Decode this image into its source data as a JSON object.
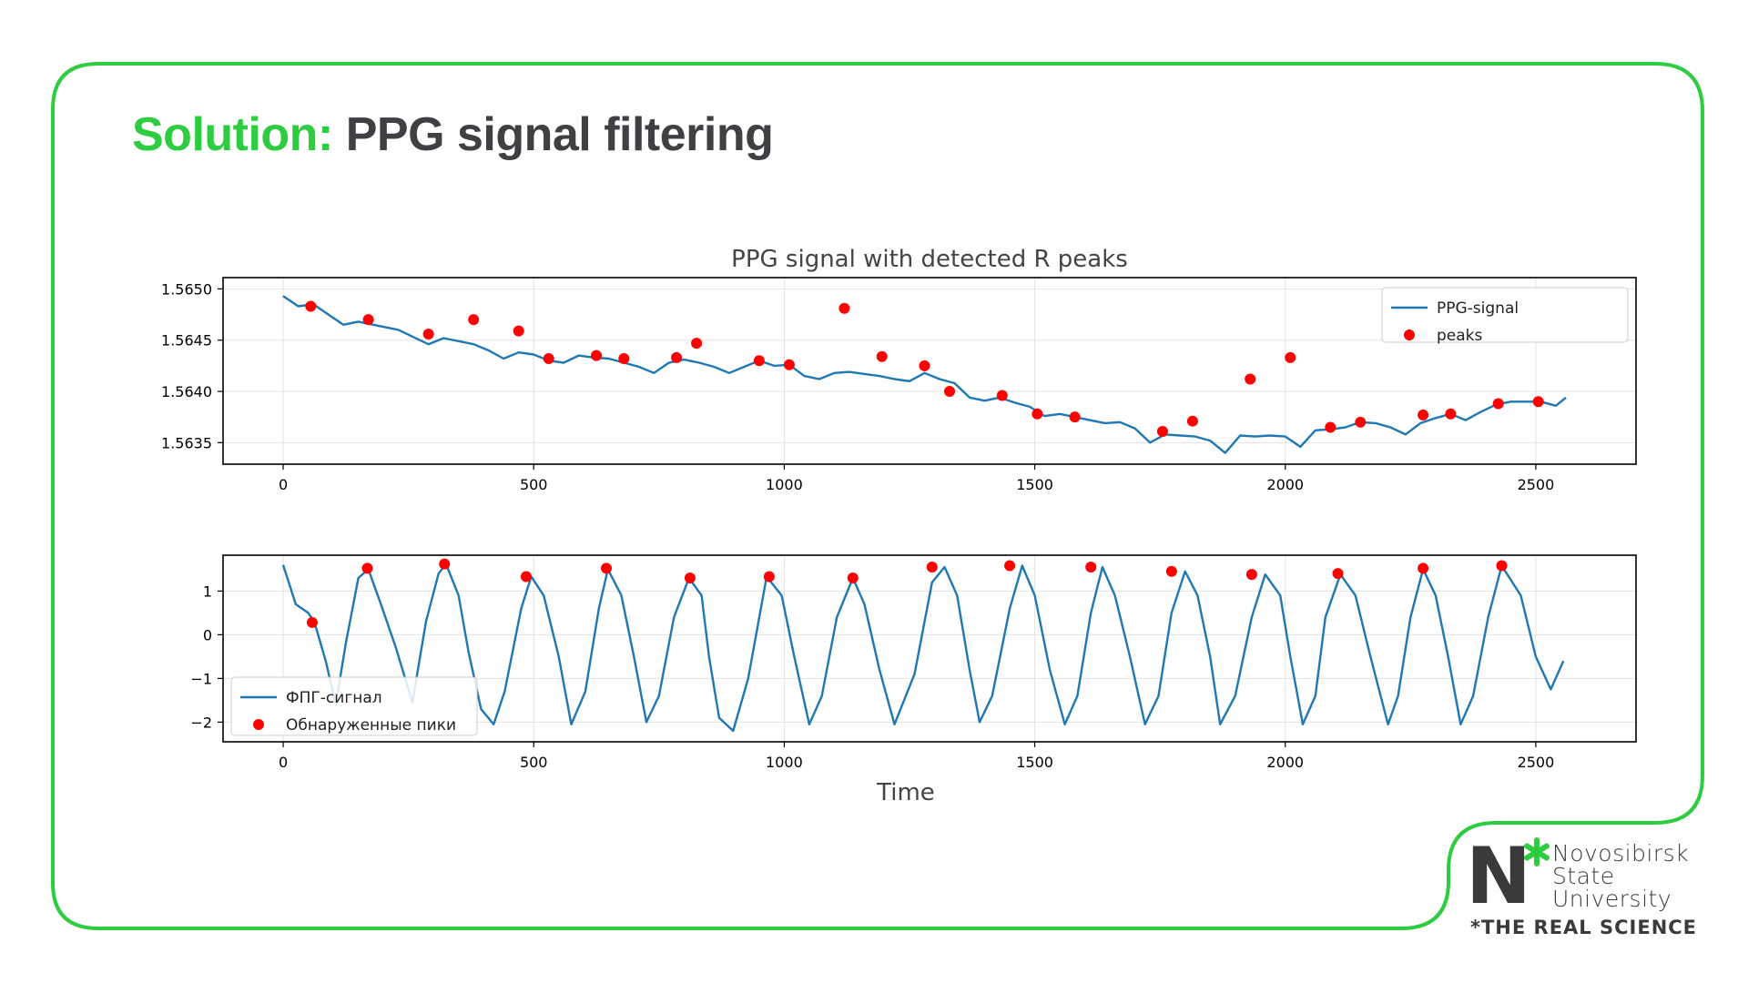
{
  "slide": {
    "title_accent": "Solution:",
    "title_main": "PPG signal filtering"
  },
  "colors": {
    "brand_green": "#2ecc40",
    "line": "#1f77b4",
    "peaks": "#ff0000"
  },
  "icons": {
    "logo": "nsu-logo",
    "star": "asterisk-icon"
  },
  "logo": {
    "letter": "N",
    "name_lines": [
      "Novosibirsk",
      "State",
      "University"
    ],
    "tagline": "*THE REAL SCIENCE"
  },
  "chart_data": [
    {
      "type": "line",
      "title": "PPG signal with detected R peaks",
      "xlabel": "",
      "ylabel": "",
      "xlim": [
        -120,
        2700
      ],
      "ylim": [
        1.56329,
        1.56511
      ],
      "xticks": [
        0,
        500,
        1000,
        1500,
        2000,
        2500
      ],
      "xtick_labels": [
        "0",
        "500",
        "1000",
        "1500",
        "2000",
        "2500"
      ],
      "yticks": [
        1.5635,
        1.564,
        1.5645,
        1.565
      ],
      "ytick_labels": [
        "1.5635",
        "1.5640",
        "1.5645",
        "1.5650"
      ],
      "grid": true,
      "legend_position": "top-right",
      "series": [
        {
          "name": "PPG-signal",
          "style": "line",
          "x": [
            0,
            30,
            60,
            90,
            120,
            150,
            170,
            200,
            230,
            260,
            290,
            320,
            350,
            380,
            410,
            440,
            470,
            500,
            530,
            560,
            590,
            620,
            650,
            680,
            710,
            740,
            770,
            800,
            830,
            860,
            890,
            920,
            950,
            980,
            1010,
            1040,
            1070,
            1100,
            1130,
            1160,
            1190,
            1220,
            1250,
            1280,
            1310,
            1340,
            1370,
            1400,
            1430,
            1460,
            1490,
            1520,
            1550,
            1580,
            1610,
            1640,
            1670,
            1700,
            1730,
            1760,
            1790,
            1820,
            1850,
            1880,
            1910,
            1940,
            1970,
            2000,
            2030,
            2060,
            2090,
            2120,
            2150,
            2180,
            2210,
            2240,
            2270,
            2300,
            2330,
            2360,
            2390,
            2420,
            2450,
            2480,
            2510,
            2540,
            2560
          ],
          "values": [
            1.56493,
            1.56483,
            1.56485,
            1.56475,
            1.56465,
            1.56468,
            1.56466,
            1.56463,
            1.5646,
            1.56453,
            1.56446,
            1.56452,
            1.56449,
            1.56446,
            1.5644,
            1.56432,
            1.56438,
            1.56436,
            1.5643,
            1.56428,
            1.56435,
            1.56433,
            1.56432,
            1.56428,
            1.56424,
            1.56418,
            1.56428,
            1.56431,
            1.56428,
            1.56424,
            1.56418,
            1.56424,
            1.5643,
            1.56425,
            1.56426,
            1.56415,
            1.56412,
            1.56418,
            1.56419,
            1.56417,
            1.56415,
            1.56412,
            1.5641,
            1.56418,
            1.56412,
            1.56408,
            1.56394,
            1.56391,
            1.56394,
            1.56389,
            1.56385,
            1.56376,
            1.56378,
            1.56375,
            1.56372,
            1.56369,
            1.5637,
            1.56364,
            1.5635,
            1.56358,
            1.56357,
            1.56356,
            1.56352,
            1.5634,
            1.56357,
            1.56356,
            1.56357,
            1.56356,
            1.56346,
            1.56362,
            1.56363,
            1.56365,
            1.5637,
            1.56369,
            1.56365,
            1.56358,
            1.56369,
            1.56374,
            1.56378,
            1.56372,
            1.5638,
            1.56387,
            1.5639,
            1.5639,
            1.5639,
            1.56386,
            1.56394
          ]
        },
        {
          "name": "peaks",
          "style": "markers",
          "x": [
            55,
            170,
            290,
            380,
            470,
            530,
            625,
            680,
            785,
            825,
            950,
            1010,
            1120,
            1195,
            1280,
            1330,
            1435,
            1505,
            1580,
            1755,
            1815,
            1930,
            2010,
            2090,
            2150,
            2275,
            2330,
            2425,
            2505
          ],
          "values": [
            1.56483,
            1.5647,
            1.56456,
            1.5647,
            1.56459,
            1.56432,
            1.56435,
            1.56432,
            1.56433,
            1.56447,
            1.5643,
            1.56426,
            1.56481,
            1.56434,
            1.56425,
            1.564,
            1.56396,
            1.56378,
            1.56375,
            1.56361,
            1.56371,
            1.56412,
            1.56433,
            1.56365,
            1.5637,
            1.56377,
            1.56378,
            1.56388,
            1.5639
          ]
        }
      ]
    },
    {
      "type": "line",
      "title": "",
      "xlabel": "Time",
      "ylabel": "",
      "xlim": [
        -120,
        2700
      ],
      "ylim": [
        -2.45,
        1.82
      ],
      "xticks": [
        0,
        500,
        1000,
        1500,
        2000,
        2500
      ],
      "xtick_labels": [
        "0",
        "500",
        "1000",
        "1500",
        "2000",
        "2500"
      ],
      "yticks": [
        -2,
        -1,
        0,
        1
      ],
      "ytick_labels": [
        "−2",
        "−1",
        "0",
        "1"
      ],
      "grid": true,
      "legend_position": "bottom-left",
      "series": [
        {
          "name": "ФПГ-сигнал",
          "style": "line",
          "x": [
            0,
            25,
            50,
            62,
            85,
            105,
            125,
            150,
            170,
            195,
            225,
            258,
            285,
            310,
            325,
            350,
            370,
            395,
            420,
            442,
            475,
            495,
            520,
            550,
            575,
            603,
            630,
            648,
            675,
            700,
            725,
            750,
            780,
            810,
            835,
            850,
            870,
            898,
            928,
            965,
            995,
            1020,
            1050,
            1075,
            1105,
            1137,
            1160,
            1190,
            1220,
            1260,
            1295,
            1320,
            1345,
            1370,
            1390,
            1415,
            1450,
            1475,
            1500,
            1530,
            1560,
            1585,
            1612,
            1635,
            1660,
            1690,
            1720,
            1747,
            1773,
            1800,
            1825,
            1850,
            1870,
            1900,
            1933,
            1960,
            1990,
            2010,
            2035,
            2060,
            2080,
            2110,
            2140,
            2170,
            2205,
            2225,
            2250,
            2275,
            2300,
            2325,
            2350,
            2375,
            2405,
            2432,
            2470,
            2500,
            2530,
            2555
          ],
          "values": [
            1.6,
            0.7,
            0.5,
            0.3,
            -0.6,
            -1.6,
            -0.2,
            1.3,
            1.5,
            0.7,
            -0.3,
            -1.55,
            0.3,
            1.4,
            1.62,
            0.9,
            -0.4,
            -1.7,
            -2.05,
            -1.3,
            0.6,
            1.33,
            0.9,
            -0.5,
            -2.05,
            -1.3,
            0.6,
            1.5,
            0.9,
            -0.5,
            -2.0,
            -1.4,
            0.4,
            1.3,
            0.9,
            -0.5,
            -1.9,
            -2.2,
            -1.0,
            1.33,
            0.9,
            -0.5,
            -2.05,
            -1.4,
            0.4,
            1.3,
            0.7,
            -0.8,
            -2.05,
            -0.9,
            1.2,
            1.55,
            0.9,
            -0.8,
            -2.0,
            -1.4,
            0.6,
            1.58,
            0.9,
            -0.8,
            -2.05,
            -1.4,
            0.5,
            1.55,
            0.9,
            -0.5,
            -2.05,
            -1.4,
            0.5,
            1.45,
            0.9,
            -0.5,
            -2.05,
            -1.4,
            0.4,
            1.38,
            0.9,
            -0.5,
            -2.05,
            -1.4,
            0.4,
            1.38,
            0.9,
            -0.5,
            -2.05,
            -1.4,
            0.4,
            1.5,
            0.9,
            -0.5,
            -2.05,
            -1.4,
            0.4,
            1.58,
            0.9,
            -0.5,
            -1.25,
            -0.6
          ]
        },
        {
          "name": "Обнаруженные пики",
          "style": "markers",
          "x": [
            58,
            168,
            322,
            485,
            645,
            812,
            970,
            1137,
            1295,
            1450,
            1612,
            1773,
            1933,
            2105,
            2275,
            2432
          ],
          "values": [
            0.28,
            1.52,
            1.62,
            1.33,
            1.52,
            1.3,
            1.33,
            1.3,
            1.55,
            1.58,
            1.55,
            1.45,
            1.38,
            1.4,
            1.52,
            1.58
          ]
        }
      ]
    }
  ]
}
